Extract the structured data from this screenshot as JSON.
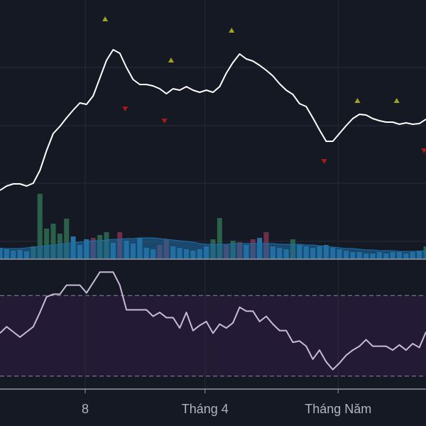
{
  "chart_data": [
    {
      "type": "line",
      "color": "#ffffff",
      "xlim": [
        0,
        64
      ],
      "ylim": [
        0,
        365
      ],
      "grid_lines": [
        270,
        188,
        107,
        25
      ],
      "values": [
        97,
        103,
        106,
        106,
        103,
        107,
        125,
        153,
        177,
        187,
        199,
        210,
        220,
        218,
        230,
        255,
        280,
        295,
        290,
        270,
        253,
        246,
        246,
        244,
        240,
        233,
        240,
        238,
        243,
        238,
        235,
        238,
        235,
        243,
        262,
        277,
        289,
        282,
        279,
        273,
        266,
        258,
        247,
        238,
        232,
        219,
        215,
        199,
        182,
        166,
        166,
        177,
        188,
        198,
        204,
        203,
        198,
        195,
        193,
        193,
        190,
        192,
        190,
        191,
        197
      ],
      "series": [
        {
          "type": "scatter",
          "marker": "up",
          "color": "#a3a323",
          "x": [
            15.8,
            25.7,
            34.8,
            53.7,
            59.6
          ],
          "values": [
            338,
            280,
            322,
            223,
            223
          ]
        },
        {
          "type": "scatter",
          "marker": "down",
          "color": "#a51c1c",
          "x": [
            18.8,
            24.7,
            48.7,
            63.7
          ],
          "values": [
            212,
            195,
            138,
            153
          ]
        }
      ]
    },
    {
      "type": "bar",
      "xlim": [
        0,
        64
      ],
      "ylim": [
        0,
        365
      ],
      "area_color": "#1f6fa8",
      "values": [
        16,
        14,
        12,
        13,
        11,
        18,
        92,
        43,
        50,
        36,
        57,
        32,
        20,
        28,
        30,
        34,
        38,
        23,
        38,
        26,
        22,
        30,
        16,
        14,
        20,
        28,
        18,
        16,
        14,
        12,
        14,
        18,
        28,
        58,
        20,
        26,
        24,
        20,
        28,
        30,
        38,
        18,
        16,
        14,
        28,
        20,
        18,
        16,
        18,
        20,
        16,
        14,
        12,
        10,
        10,
        8,
        8,
        10,
        8,
        10,
        10,
        8,
        10,
        12,
        18
      ],
      "colors": [
        "#2a7fb5",
        "#2a7fb5",
        "#2a7fb5",
        "#2a7fb5",
        "#2a7fb5",
        "#2f6e52",
        "#2f6e52",
        "#2f6e52",
        "#2f6e52",
        "#2f6e52",
        "#2f6e52",
        "#2a7fb5",
        "#2a7fb5",
        "#2a7fb5",
        "#7c3450",
        "#2f6e52",
        "#2f6e52",
        "#2a7fb5",
        "#7c3450",
        "#2a7fb5",
        "#2a7fb5",
        "#2a7fb5",
        "#2a7fb5",
        "#2a7fb5",
        "#7c3450",
        "#7c3450",
        "#2a7fb5",
        "#2a7fb5",
        "#2a7fb5",
        "#2a7fb5",
        "#2a7fb5",
        "#2a7fb5",
        "#2f6e52",
        "#2f6e52",
        "#7c3450",
        "#2f6e52",
        "#7c3450",
        "#2a7fb5",
        "#7c3450",
        "#2a7fb5",
        "#7c3450",
        "#2a7fb5",
        "#2a7fb5",
        "#2a7fb5",
        "#2f6e52",
        "#2a7fb5",
        "#2a7fb5",
        "#2a7fb5",
        "#2a7fb5",
        "#2a7fb5",
        "#2a7fb5",
        "#2a7fb5",
        "#2a7fb5",
        "#2a7fb5",
        "#2a7fb5",
        "#2a7fb5",
        "#2a7fb5",
        "#2a7fb5",
        "#2a7fb5",
        "#2a7fb5",
        "#2a7fb5",
        "#2a7fb5",
        "#2a7fb5",
        "#2a7fb5",
        "#2f6e52"
      ],
      "average": [
        15,
        15,
        15,
        15,
        16,
        17,
        18,
        19,
        20,
        21,
        22,
        23,
        24,
        25,
        26,
        26,
        27,
        28,
        28,
        29,
        29,
        30,
        30,
        30,
        29,
        28,
        27,
        26,
        25,
        24,
        22,
        21,
        21,
        21,
        21,
        22,
        22,
        22,
        22,
        22,
        22,
        22,
        21,
        21,
        21,
        21,
        20,
        20,
        19,
        18,
        17,
        16,
        15,
        15,
        14,
        13,
        13,
        12,
        12,
        12,
        11,
        11,
        11,
        11,
        12
      ]
    },
    {
      "type": "line",
      "color": "#c9bad9",
      "xlim": [
        0,
        64
      ],
      "ylim": [
        0,
        100
      ],
      "bands": [
        72,
        10
      ],
      "band_color": "#231a36",
      "values": [
        43,
        48,
        44,
        40,
        44,
        48,
        59,
        71,
        73,
        73,
        80,
        80,
        80,
        74,
        82,
        90,
        90,
        90,
        80,
        61,
        61,
        61,
        61,
        56,
        59,
        55,
        55,
        47,
        59,
        45,
        49,
        52,
        43,
        50,
        47,
        51,
        63,
        60,
        60,
        52,
        56,
        50,
        45,
        45,
        36,
        37,
        33,
        23,
        30,
        21,
        15,
        20,
        26,
        30,
        33,
        38,
        33,
        33,
        33,
        30,
        34,
        30,
        35,
        32,
        44
      ],
      "xticks": [
        {
          "value": 12.8,
          "label": "8"
        },
        {
          "value": 30.8,
          "label": "Tháng 4"
        },
        {
          "value": 50.8,
          "label": "Tháng Năm"
        }
      ]
    }
  ]
}
